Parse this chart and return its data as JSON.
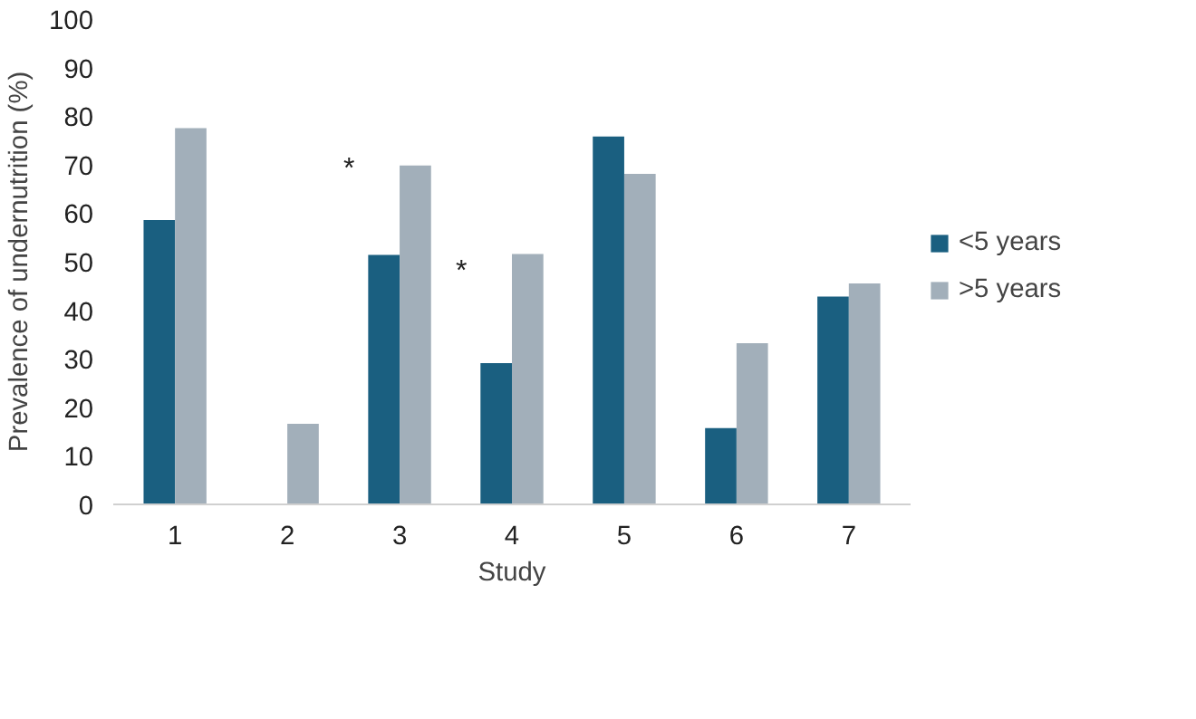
{
  "chart_data": {
    "type": "bar",
    "xlabel": "Study",
    "ylabel": "Prevalence of undernutrition (%)",
    "categories": [
      "1",
      "2",
      "3",
      "4",
      "5",
      "6",
      "7"
    ],
    "series": [
      {
        "name": "<5 years",
        "color": "#1a5f80",
        "values": [
          58.6,
          null,
          51.4,
          29.1,
          75.8,
          15.7,
          42.8
        ]
      },
      {
        "name": ">5 years",
        "color": "#a2afba",
        "values": [
          77.5,
          16.6,
          69.8,
          51.6,
          68.1,
          33.2,
          45.5
        ]
      }
    ],
    "ylim": [
      0,
      100
    ],
    "yticks": [
      0,
      10,
      20,
      30,
      40,
      50,
      60,
      70,
      80,
      90,
      100
    ],
    "grid": false,
    "legend": "right",
    "annotations": [
      {
        "text": "*",
        "x": "3",
        "y": 69
      },
      {
        "text": "*",
        "x": "4",
        "y": 48
      }
    ]
  }
}
